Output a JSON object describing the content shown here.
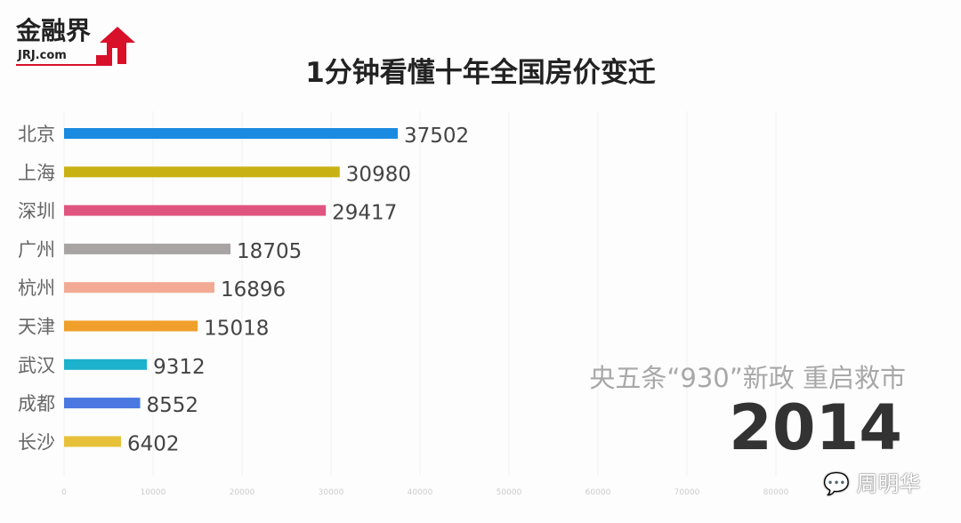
{
  "logo": {
    "text": "金融界",
    "sub": "JRJ.com"
  },
  "chart_data": {
    "type": "bar",
    "orientation": "horizontal",
    "title": "1分钟看懂十年全国房价变迁",
    "categories": [
      "北京",
      "上海",
      "深圳",
      "广州",
      "杭州",
      "天津",
      "武汉",
      "成都",
      "长沙"
    ],
    "values": [
      37502,
      30980,
      29417,
      18705,
      16896,
      15018,
      9312,
      8552,
      6402
    ],
    "colors": [
      "#1a8be0",
      "#c8b213",
      "#e0557f",
      "#a8a4a4",
      "#f2aa94",
      "#f0a02a",
      "#1cb1cc",
      "#4a78e0",
      "#e8c13a"
    ],
    "xlim": [
      0,
      90000
    ],
    "xticks": [
      "0",
      "10000",
      "20000",
      "30000",
      "40000",
      "50000",
      "60000",
      "70000",
      "80000"
    ],
    "grid": true,
    "annotation": "央五条“930”新政  重启救市",
    "year": "2014"
  },
  "watermark": "周明华"
}
